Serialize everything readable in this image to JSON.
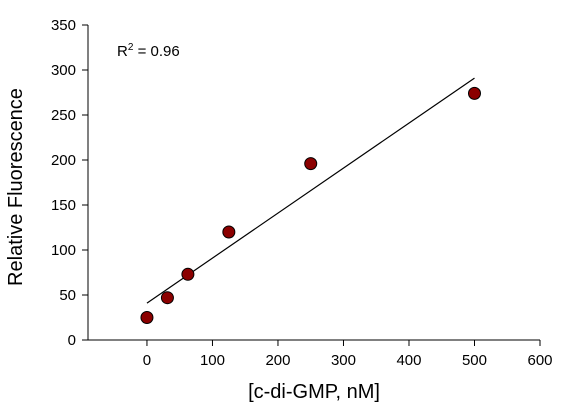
{
  "chart_data": {
    "type": "scatter",
    "title": "",
    "xlabel": "[c-di-GMP, nM]",
    "ylabel": "Relative Fluorescence",
    "xlim": [
      -90,
      600
    ],
    "ylim": [
      0,
      350
    ],
    "xticks": [
      0,
      100,
      200,
      300,
      400,
      500,
      600
    ],
    "yticks": [
      0,
      50,
      100,
      150,
      200,
      250,
      300,
      350
    ],
    "grid": false,
    "legend": "none",
    "series": [
      {
        "x": [
          0,
          31.25,
          62.5,
          125,
          250,
          500
        ],
        "y": [
          25,
          47,
          73,
          120,
          196,
          274
        ],
        "marker": "circle",
        "color": "#8b0000",
        "edge_color": "#000000"
      }
    ],
    "fit_line": {
      "x": [
        0,
        500
      ],
      "y": [
        41,
        291
      ],
      "color": "#000000"
    },
    "annotation": {
      "prefix": "R",
      "superscript": "2",
      "suffix": " = 0.96"
    }
  }
}
